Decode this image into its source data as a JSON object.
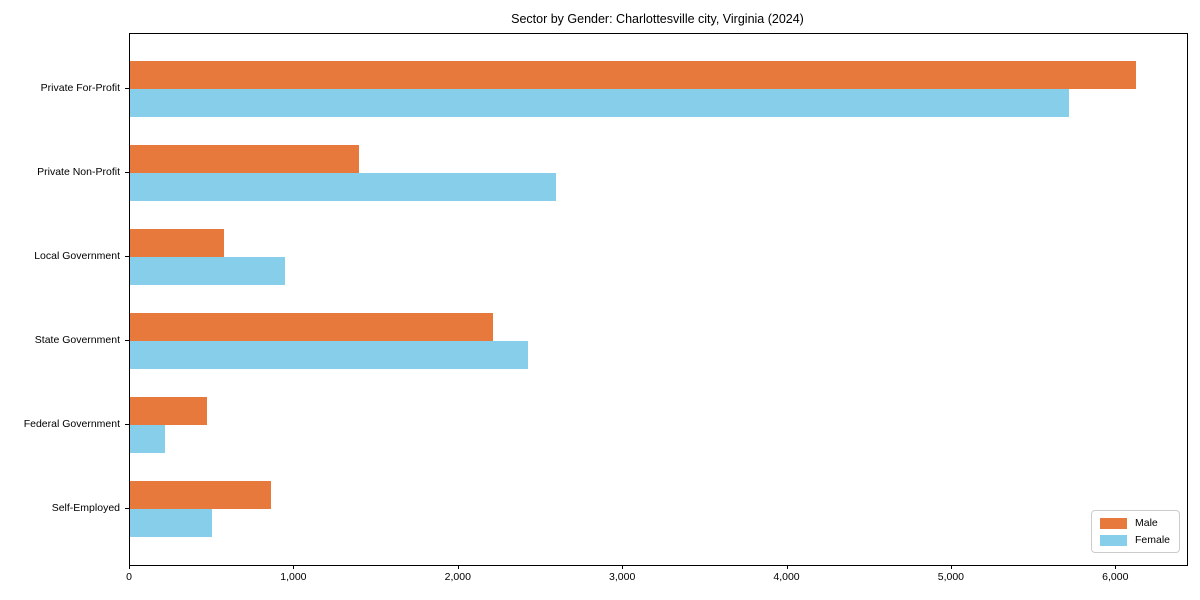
{
  "chart_data": {
    "type": "bar",
    "orientation": "horizontal",
    "title": "Sector by Gender: Charlottesville city, Virginia (2024)",
    "categories": [
      "Private For-Profit",
      "Private Non-Profit",
      "Local Government",
      "State Government",
      "Federal Government",
      "Self-Employed"
    ],
    "series": [
      {
        "name": "Male",
        "color": "#e8793d",
        "values": [
          6120,
          1390,
          570,
          2210,
          470,
          860
        ]
      },
      {
        "name": "Female",
        "color": "#87ceeb",
        "values": [
          5710,
          2590,
          940,
          2420,
          210,
          500
        ]
      }
    ],
    "xlabel": "",
    "ylabel": "",
    "xlim": [
      0,
      6430
    ],
    "xticks": [
      0,
      1000,
      2000,
      3000,
      4000,
      5000,
      6000
    ],
    "xtick_labels": [
      "0",
      "1,000",
      "2,000",
      "3,000",
      "4,000",
      "5,000",
      "6,000"
    ],
    "legend_position": "lower right",
    "grid": false,
    "background_color": "#ffffff",
    "axis_color": "#000000"
  }
}
